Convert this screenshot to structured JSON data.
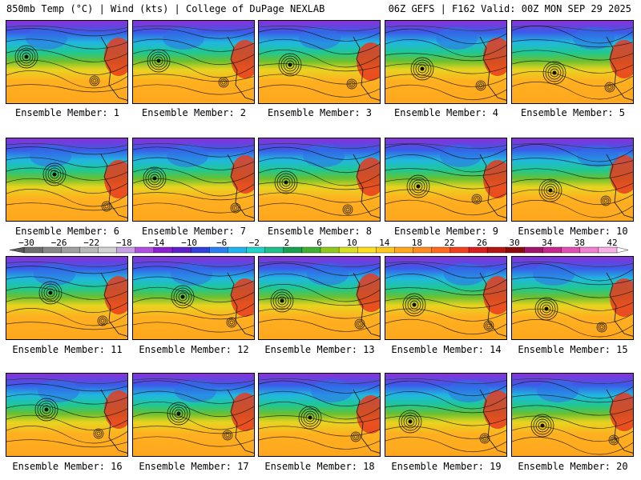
{
  "header": {
    "left": "850mb Temp (°C) | Wind (kts) | College of DuPage NEXLAB",
    "right": "06Z GEFS | F162 Valid: 00Z MON SEP 29 2025"
  },
  "panels": [
    {
      "label": "Ensemble Member: 1"
    },
    {
      "label": "Ensemble Member: 2"
    },
    {
      "label": "Ensemble Member: 3"
    },
    {
      "label": "Ensemble Member: 4"
    },
    {
      "label": "Ensemble Member: 5"
    },
    {
      "label": "Ensemble Member: 6"
    },
    {
      "label": "Ensemble Member: 7"
    },
    {
      "label": "Ensemble Member: 8"
    },
    {
      "label": "Ensemble Member: 9"
    },
    {
      "label": "Ensemble Member: 10"
    },
    {
      "label": "Ensemble Member: 11"
    },
    {
      "label": "Ensemble Member: 12"
    },
    {
      "label": "Ensemble Member: 13"
    },
    {
      "label": "Ensemble Member: 14"
    },
    {
      "label": "Ensemble Member: 15"
    },
    {
      "label": "Ensemble Member: 16"
    },
    {
      "label": "Ensemble Member: 17"
    },
    {
      "label": "Ensemble Member: 18"
    },
    {
      "label": "Ensemble Member: 19"
    },
    {
      "label": "Ensemble Member: 20"
    }
  ],
  "colorbar": {
    "tick_labels": [
      "−30",
      "−26",
      "−22",
      "−18",
      "−14",
      "−10",
      "−6",
      "−2",
      "2",
      "6",
      "10",
      "14",
      "18",
      "22",
      "26",
      "30",
      "34",
      "38",
      "42"
    ],
    "colors": [
      "#6e6e6e",
      "#888888",
      "#a0a0a0",
      "#b8b8b8",
      "#d2d2d2",
      "#c8a0e6",
      "#b050e0",
      "#8a20d0",
      "#6020c8",
      "#3040d8",
      "#2a80f0",
      "#20b4f0",
      "#20d2c8",
      "#20c08c",
      "#18a050",
      "#40b030",
      "#90c820",
      "#d8e020",
      "#ffe020",
      "#ffc81e",
      "#ffa81e",
      "#ff8c1e",
      "#ff6a1e",
      "#f04020",
      "#d81e1e",
      "#b41414",
      "#8c0a0a",
      "#a0146e",
      "#c8288c",
      "#e050b4",
      "#f080d0",
      "#f8b0e6"
    ]
  }
}
